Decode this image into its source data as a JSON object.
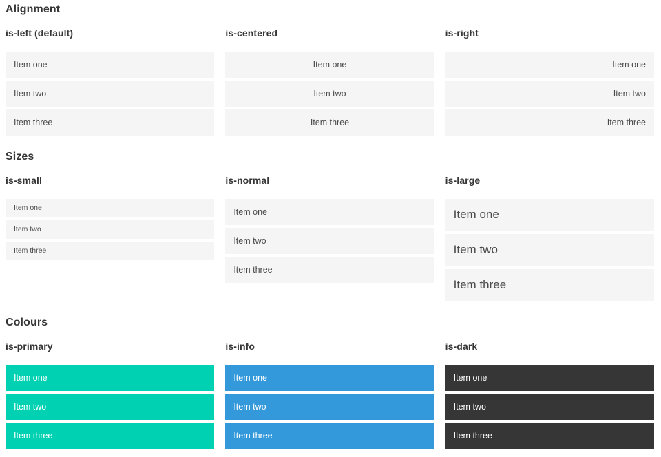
{
  "colors": {
    "page_background": "#ffffff",
    "heading_text": "#363636",
    "item_background": "#f5f5f5",
    "item_text": "#4a4a4a",
    "primary": "#00d1b2",
    "info": "#3499db",
    "dark": "#363636",
    "colored_item_text": "#ffffff"
  },
  "sections": [
    {
      "title": "Alignment",
      "columns": [
        {
          "heading": "is-left (default)",
          "modifier": "is-left",
          "items": [
            "Item one",
            "Item two",
            "Item three"
          ]
        },
        {
          "heading": "is-centered",
          "modifier": "is-centered",
          "items": [
            "Item one",
            "Item two",
            "Item three"
          ]
        },
        {
          "heading": "is-right",
          "modifier": "is-right",
          "items": [
            "Item one",
            "Item two",
            "Item three"
          ]
        }
      ]
    },
    {
      "title": "Sizes",
      "columns": [
        {
          "heading": "is-small",
          "modifier": "is-small",
          "items": [
            "Item one",
            "Item two",
            "Item three"
          ]
        },
        {
          "heading": "is-normal",
          "modifier": "is-normal",
          "items": [
            "Item one",
            "Item two",
            "Item three"
          ]
        },
        {
          "heading": "is-large",
          "modifier": "is-large",
          "items": [
            "Item one",
            "Item two",
            "Item three"
          ]
        }
      ]
    },
    {
      "title": "Colours",
      "columns": [
        {
          "heading": "is-primary",
          "modifier": "is-primary",
          "items": [
            "Item one",
            "Item two",
            "Item three"
          ]
        },
        {
          "heading": "is-info",
          "modifier": "is-info",
          "items": [
            "Item one",
            "Item two",
            "Item three"
          ]
        },
        {
          "heading": "is-dark",
          "modifier": "is-dark",
          "items": [
            "Item one",
            "Item two",
            "Item three"
          ]
        }
      ]
    }
  ]
}
